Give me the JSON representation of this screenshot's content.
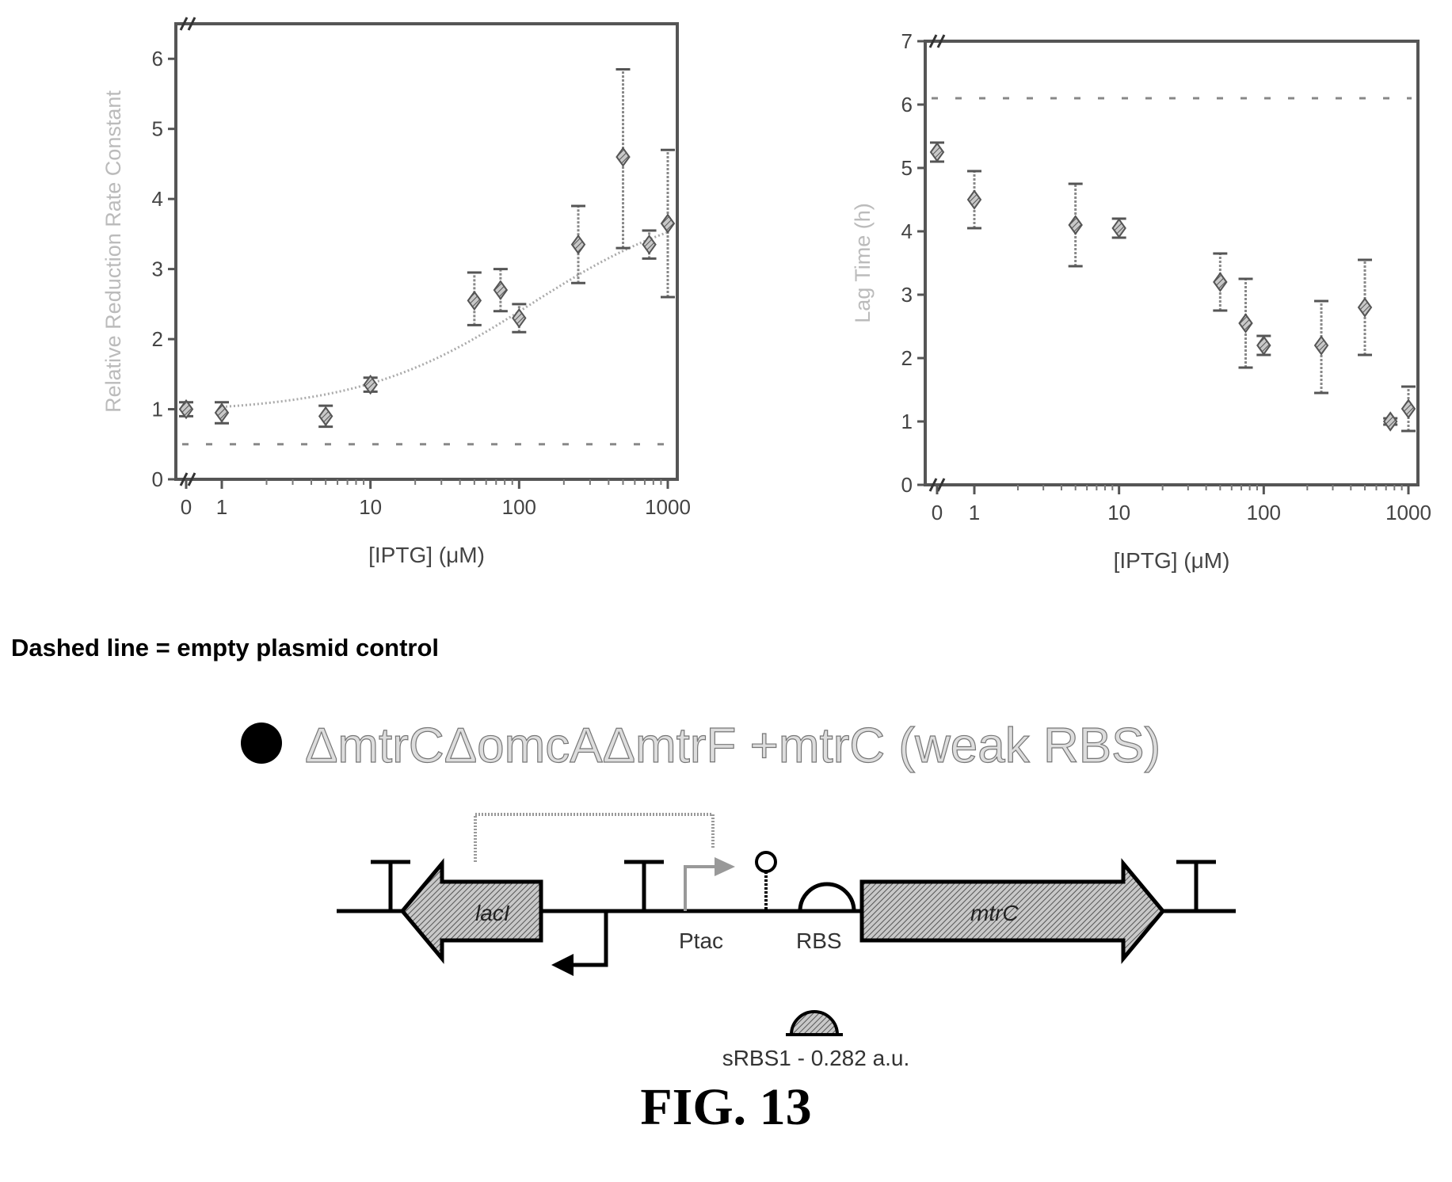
{
  "chart_data": [
    {
      "type": "scatter",
      "title": "",
      "xlabel": "[IPTG] (μM)",
      "ylabel": "Relative Reduction Rate Constant",
      "x_scale": "log",
      "x_ticks": [
        "0",
        "1",
        "10",
        "100",
        "1000"
      ],
      "y_ticks": [
        "0",
        "1",
        "2",
        "3",
        "4",
        "5",
        "6"
      ],
      "xlim": [
        1,
        1000
      ],
      "ylim": [
        0,
        6.5
      ],
      "grid": false,
      "series": [
        {
          "x": [
            0,
            1,
            5,
            10,
            50,
            75,
            100,
            250,
            500,
            750,
            1000
          ],
          "y": [
            1.0,
            0.95,
            0.9,
            1.35,
            2.55,
            2.7,
            2.3,
            3.35,
            4.6,
            3.35,
            3.65
          ],
          "err_low": [
            0.9,
            0.8,
            0.75,
            1.25,
            2.2,
            2.4,
            2.1,
            2.8,
            3.3,
            3.15,
            2.6
          ],
          "err_high": [
            1.1,
            1.1,
            1.05,
            1.45,
            2.95,
            3.0,
            2.5,
            3.9,
            5.85,
            3.55,
            4.7
          ]
        }
      ],
      "fit": "sigmoid",
      "control_line": 0.5
    },
    {
      "type": "scatter",
      "title": "",
      "xlabel": "[IPTG] (μM)",
      "ylabel": "Lag Time (h)",
      "x_scale": "log",
      "x_ticks": [
        "0",
        "1",
        "10",
        "100",
        "1000"
      ],
      "y_ticks": [
        "0",
        "1",
        "2",
        "3",
        "4",
        "5",
        "6",
        "7"
      ],
      "xlim": [
        1,
        1000
      ],
      "ylim": [
        0,
        7
      ],
      "grid": false,
      "series": [
        {
          "x": [
            0,
            1,
            5,
            10,
            50,
            75,
            100,
            250,
            500,
            750,
            1000
          ],
          "y": [
            5.25,
            4.5,
            4.1,
            4.05,
            3.2,
            2.55,
            2.2,
            2.2,
            2.8,
            1.0,
            1.2
          ],
          "err_low": [
            5.1,
            4.05,
            3.45,
            3.9,
            2.75,
            1.85,
            2.05,
            1.45,
            2.05,
            0.95,
            0.85
          ],
          "err_high": [
            5.4,
            4.95,
            4.75,
            4.2,
            3.65,
            3.25,
            2.35,
            2.9,
            3.55,
            1.05,
            1.55
          ]
        }
      ],
      "control_line": 6.1
    }
  ],
  "note": "Dashed line = empty plasmid control",
  "strain_label": "ΔmtrCΔomcAΔmtrF +mtrC (weak RBS)",
  "construct": {
    "gene_left": "lacI",
    "gene_right": "mtrC",
    "promoter": "Ptac",
    "rbs": "RBS",
    "srbs_label": "sRBS1 - 0.282 a.u."
  },
  "figure_label": "FIG. 13"
}
